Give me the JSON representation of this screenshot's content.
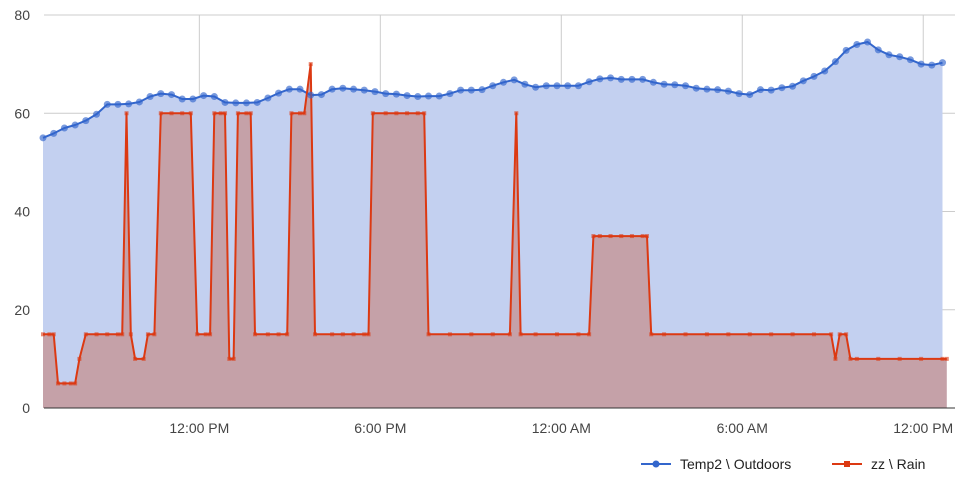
{
  "chart_data": {
    "type": "area",
    "title": "",
    "xlabel": "",
    "ylabel": "",
    "ylim": [
      0,
      80
    ],
    "yticks": [
      0,
      20,
      40,
      60,
      80
    ],
    "xticks": [
      "12:00 PM",
      "6:00 PM",
      "12:00 AM",
      "6:00 AM",
      "12:00 PM"
    ],
    "grid": true,
    "legend_position": "bottom-right",
    "series": [
      {
        "name": "Temp2 \\ Outdoors",
        "color": "#3366cc",
        "marker": "circle",
        "points": [
          [
            0,
            55
          ],
          [
            0.5,
            55.9
          ],
          [
            1,
            57
          ],
          [
            1.5,
            57.6
          ],
          [
            2,
            58.5
          ],
          [
            2.5,
            59.8
          ],
          [
            3,
            61.8
          ],
          [
            3.5,
            61.8
          ],
          [
            4,
            61.9
          ],
          [
            4.5,
            62.3
          ],
          [
            5,
            63.4
          ],
          [
            5.5,
            64
          ],
          [
            6,
            63.8
          ],
          [
            6.5,
            62.9
          ],
          [
            7,
            62.9
          ],
          [
            7.5,
            63.6
          ],
          [
            8,
            63.4
          ],
          [
            8.5,
            62.2
          ],
          [
            9,
            62.1
          ],
          [
            9.5,
            62.1
          ],
          [
            10,
            62.2
          ],
          [
            10.5,
            63.1
          ],
          [
            11,
            64.1
          ],
          [
            11.5,
            64.9
          ],
          [
            12,
            64.9
          ],
          [
            12.5,
            63.7
          ],
          [
            13,
            63.8
          ],
          [
            13.5,
            64.9
          ],
          [
            14,
            65.1
          ],
          [
            14.5,
            64.9
          ],
          [
            15,
            64.7
          ],
          [
            15.5,
            64.4
          ],
          [
            16,
            64
          ],
          [
            16.5,
            63.9
          ],
          [
            17,
            63.6
          ],
          [
            17.5,
            63.4
          ],
          [
            18,
            63.5
          ],
          [
            18.5,
            63.5
          ],
          [
            19,
            64
          ],
          [
            19.5,
            64.7
          ],
          [
            20,
            64.7
          ],
          [
            20.5,
            64.8
          ],
          [
            21,
            65.6
          ],
          [
            21.5,
            66.3
          ],
          [
            22,
            66.8
          ],
          [
            22.5,
            65.9
          ],
          [
            23,
            65.3
          ],
          [
            23.5,
            65.6
          ],
          [
            24,
            65.6
          ],
          [
            24.5,
            65.6
          ],
          [
            25,
            65.6
          ],
          [
            25.5,
            66.4
          ],
          [
            26,
            67
          ],
          [
            26.5,
            67.2
          ],
          [
            27,
            66.9
          ],
          [
            27.5,
            66.9
          ],
          [
            28,
            66.9
          ],
          [
            28.5,
            66.3
          ],
          [
            29,
            65.9
          ],
          [
            29.5,
            65.8
          ],
          [
            30,
            65.6
          ],
          [
            30.5,
            65.1
          ],
          [
            31,
            64.9
          ],
          [
            31.5,
            64.8
          ],
          [
            32,
            64.5
          ],
          [
            32.5,
            64
          ],
          [
            33,
            63.8
          ],
          [
            33.5,
            64.8
          ],
          [
            34,
            64.7
          ],
          [
            34.5,
            65.2
          ],
          [
            35,
            65.5
          ],
          [
            35.5,
            66.6
          ],
          [
            36,
            67.5
          ],
          [
            36.5,
            68.6
          ],
          [
            37,
            70.5
          ],
          [
            37.5,
            72.8
          ],
          [
            38,
            74
          ],
          [
            38.5,
            74.5
          ],
          [
            39,
            72.9
          ],
          [
            39.5,
            71.9
          ],
          [
            40,
            71.5
          ],
          [
            40.5,
            70.9
          ],
          [
            41,
            70
          ],
          [
            41.5,
            69.8
          ],
          [
            42,
            70.3
          ]
        ]
      },
      {
        "name": "zz \\ Rain",
        "color": "#dc3912",
        "marker": "square",
        "points": [
          [
            0,
            15
          ],
          [
            0.3,
            15
          ],
          [
            0.5,
            15
          ],
          [
            0.7,
            5
          ],
          [
            1,
            5
          ],
          [
            1.3,
            5
          ],
          [
            1.5,
            5
          ],
          [
            1.7,
            10
          ],
          [
            2,
            15
          ],
          [
            2.5,
            15
          ],
          [
            3,
            15
          ],
          [
            3.5,
            15
          ],
          [
            3.7,
            15
          ],
          [
            3.9,
            60
          ],
          [
            4.1,
            15
          ],
          [
            4.3,
            10
          ],
          [
            4.7,
            10
          ],
          [
            4.9,
            15
          ],
          [
            5.2,
            15
          ],
          [
            5.5,
            60
          ],
          [
            6,
            60
          ],
          [
            6.5,
            60
          ],
          [
            6.9,
            60
          ],
          [
            7.2,
            15
          ],
          [
            7.6,
            15
          ],
          [
            7.8,
            15
          ],
          [
            8,
            60
          ],
          [
            8.3,
            60
          ],
          [
            8.5,
            60
          ],
          [
            8.7,
            10
          ],
          [
            8.9,
            10
          ],
          [
            9.1,
            60
          ],
          [
            9.5,
            60
          ],
          [
            9.7,
            60
          ],
          [
            9.9,
            15
          ],
          [
            10.5,
            15
          ],
          [
            11,
            15
          ],
          [
            11.4,
            15
          ],
          [
            11.6,
            60
          ],
          [
            12,
            60
          ],
          [
            12.2,
            60
          ],
          [
            12.5,
            70
          ],
          [
            12.7,
            15
          ],
          [
            13.5,
            15
          ],
          [
            14,
            15
          ],
          [
            14.5,
            15
          ],
          [
            15,
            15
          ],
          [
            15.2,
            15
          ],
          [
            15.4,
            60
          ],
          [
            16,
            60
          ],
          [
            16.5,
            60
          ],
          [
            17,
            60
          ],
          [
            17.5,
            60
          ],
          [
            17.8,
            60
          ],
          [
            18,
            15
          ],
          [
            19,
            15
          ],
          [
            20,
            15
          ],
          [
            21,
            15
          ],
          [
            21.8,
            15
          ],
          [
            22.1,
            60
          ],
          [
            22.3,
            15
          ],
          [
            23,
            15
          ],
          [
            24,
            15
          ],
          [
            25,
            15
          ],
          [
            25.5,
            15
          ],
          [
            25.7,
            35
          ],
          [
            26,
            35
          ],
          [
            26.5,
            35
          ],
          [
            27,
            35
          ],
          [
            27.5,
            35
          ],
          [
            28,
            35
          ],
          [
            28.2,
            35
          ],
          [
            28.4,
            15
          ],
          [
            29,
            15
          ],
          [
            30,
            15
          ],
          [
            31,
            15
          ],
          [
            32,
            15
          ],
          [
            33,
            15
          ],
          [
            34,
            15
          ],
          [
            35,
            15
          ],
          [
            36,
            15
          ],
          [
            36.8,
            15
          ],
          [
            37,
            10
          ],
          [
            37.2,
            15
          ],
          [
            37.5,
            15
          ],
          [
            37.7,
            10
          ],
          [
            38,
            10
          ],
          [
            39,
            10
          ],
          [
            40,
            10
          ],
          [
            41,
            10
          ],
          [
            42,
            10
          ],
          [
            42.2,
            10
          ]
        ]
      }
    ]
  }
}
